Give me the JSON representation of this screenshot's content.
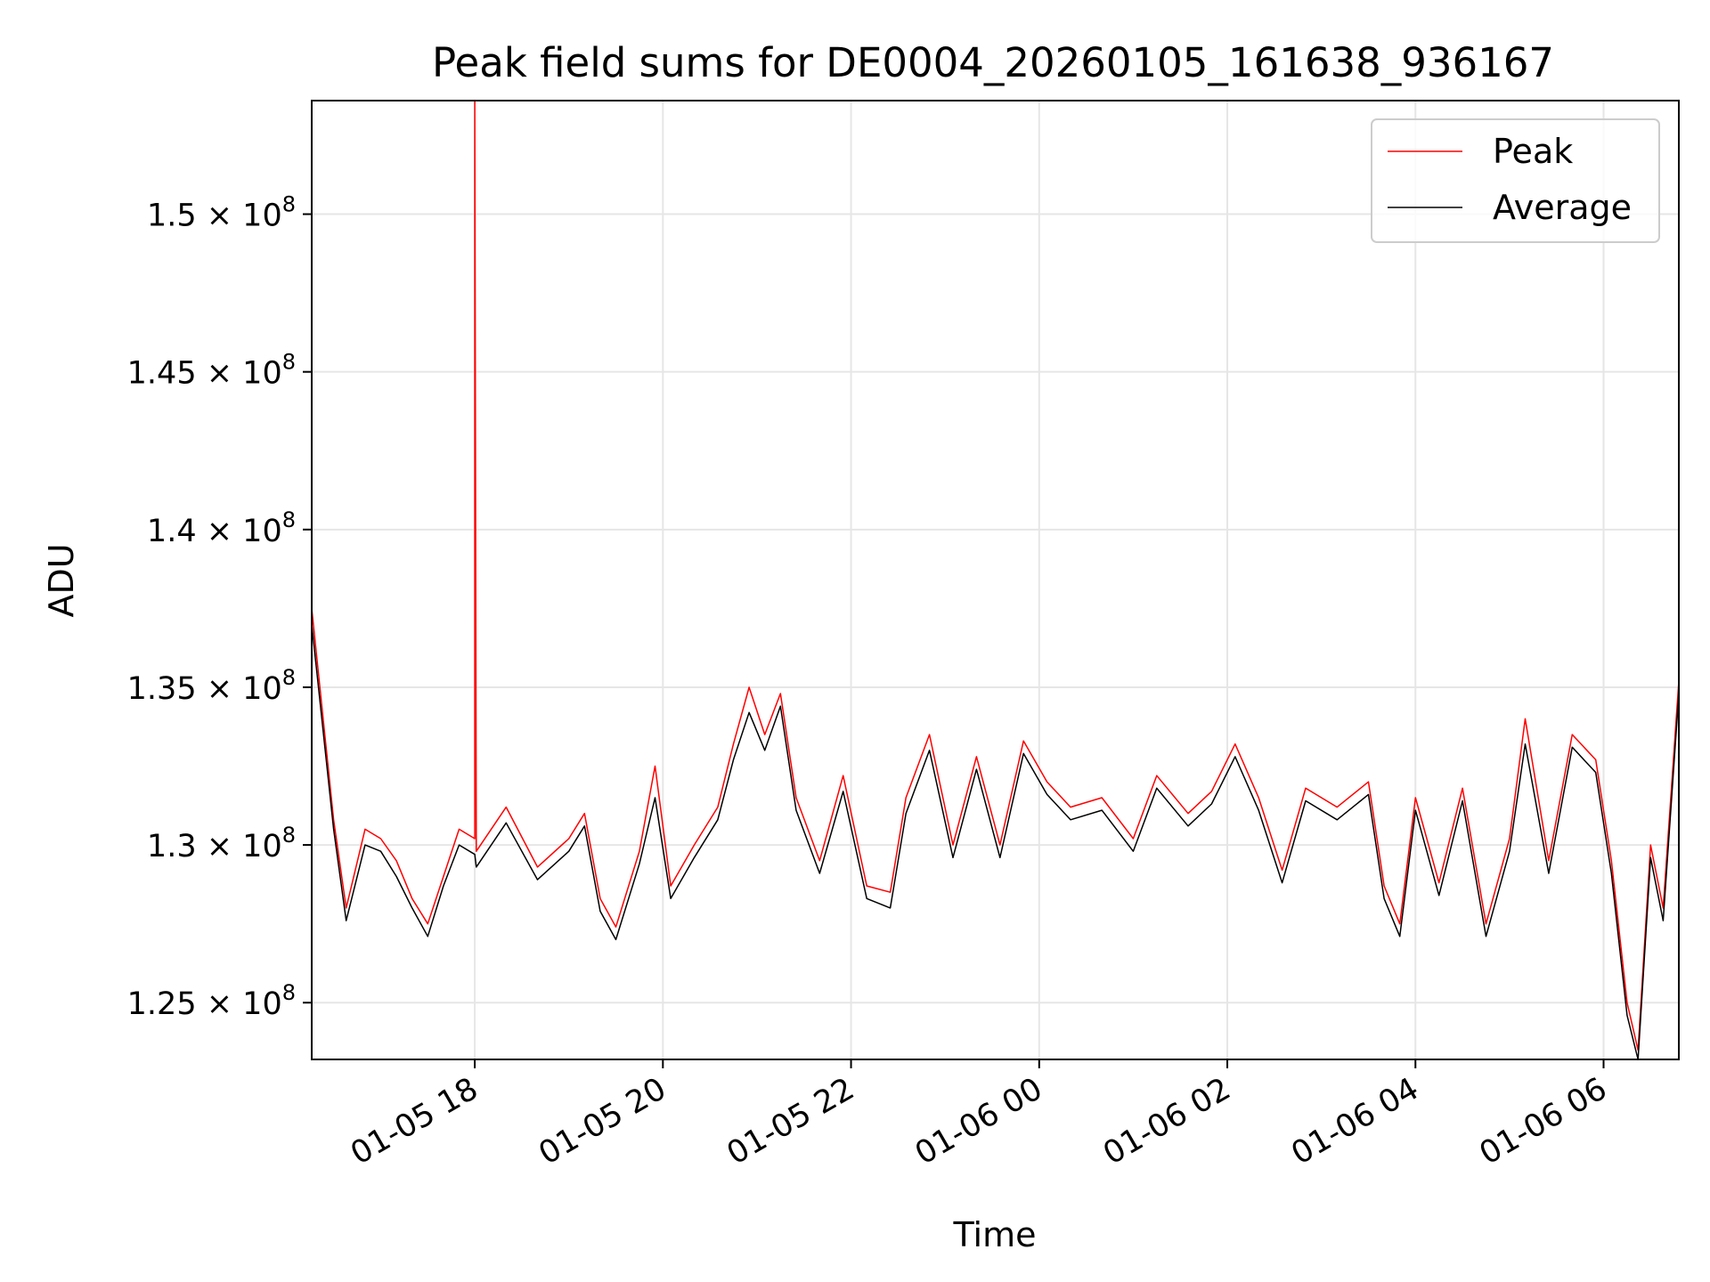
{
  "chart_data": {
    "type": "line",
    "title": "Peak field sums for DE0004_20260105_161638_936167",
    "xlabel": "Time",
    "ylabel": "ADU",
    "x_range": [
      "2026-01-05 16:16",
      "2026-01-06 06:48"
    ],
    "ylim": [
      123200000,
      153600000
    ],
    "grid": true,
    "legend": {
      "placement": "top-right",
      "entries": [
        "Peak",
        "Average"
      ]
    },
    "x_ticks": [
      {
        "value": "2026-01-05 18:00",
        "label": "01-05 18"
      },
      {
        "value": "2026-01-05 20:00",
        "label": "01-05 20"
      },
      {
        "value": "2026-01-05 22:00",
        "label": "01-05 22"
      },
      {
        "value": "2026-01-06 00:00",
        "label": "01-06 00"
      },
      {
        "value": "2026-01-06 02:00",
        "label": "01-06 02"
      },
      {
        "value": "2026-01-06 04:00",
        "label": "01-06 04"
      },
      {
        "value": "2026-01-06 06:00",
        "label": "01-06 06"
      }
    ],
    "y_ticks": [
      {
        "value": 125000000,
        "mantissa": "1.25",
        "exponent": "8"
      },
      {
        "value": 130000000,
        "mantissa": "1.3",
        "exponent": "8"
      },
      {
        "value": 135000000,
        "mantissa": "1.35",
        "exponent": "8"
      },
      {
        "value": 140000000,
        "mantissa": "1.4",
        "exponent": "8"
      },
      {
        "value": 145000000,
        "mantissa": "1.45",
        "exponent": "8"
      },
      {
        "value": 150000000,
        "mantissa": "1.5",
        "exponent": "8"
      }
    ],
    "series": [
      {
        "name": "Peak",
        "color": "#ff0000",
        "points": [
          [
            "2026-01-05 16:16",
            137500000
          ],
          [
            "2026-01-05 16:30",
            130800000
          ],
          [
            "2026-01-05 16:38",
            128000000
          ],
          [
            "2026-01-05 16:50",
            130500000
          ],
          [
            "2026-01-05 17:00",
            130200000
          ],
          [
            "2026-01-05 17:10",
            129500000
          ],
          [
            "2026-01-05 17:20",
            128300000
          ],
          [
            "2026-01-05 17:30",
            127500000
          ],
          [
            "2026-01-05 17:40",
            129000000
          ],
          [
            "2026-01-05 17:50",
            130500000
          ],
          [
            "2026-01-05 18:00",
            130200000
          ],
          [
            "2026-01-05 18:00",
            153600000
          ],
          [
            "2026-01-05 18:01",
            129800000
          ],
          [
            "2026-01-05 18:20",
            131200000
          ],
          [
            "2026-01-05 18:40",
            129300000
          ],
          [
            "2026-01-05 19:00",
            130200000
          ],
          [
            "2026-01-05 19:10",
            131000000
          ],
          [
            "2026-01-05 19:20",
            128300000
          ],
          [
            "2026-01-05 19:30",
            127400000
          ],
          [
            "2026-01-05 19:45",
            129800000
          ],
          [
            "2026-01-05 19:55",
            132500000
          ],
          [
            "2026-01-05 20:05",
            128700000
          ],
          [
            "2026-01-05 20:20",
            130000000
          ],
          [
            "2026-01-05 20:35",
            131200000
          ],
          [
            "2026-01-05 20:45",
            133200000
          ],
          [
            "2026-01-05 20:55",
            135000000
          ],
          [
            "2026-01-05 21:05",
            133500000
          ],
          [
            "2026-01-05 21:15",
            134800000
          ],
          [
            "2026-01-05 21:25",
            131500000
          ],
          [
            "2026-01-05 21:40",
            129500000
          ],
          [
            "2026-01-05 21:55",
            132200000
          ],
          [
            "2026-01-05 22:10",
            128700000
          ],
          [
            "2026-01-05 22:25",
            128500000
          ],
          [
            "2026-01-05 22:35",
            131500000
          ],
          [
            "2026-01-05 22:50",
            133500000
          ],
          [
            "2026-01-05 23:05",
            130000000
          ],
          [
            "2026-01-05 23:20",
            132800000
          ],
          [
            "2026-01-05 23:35",
            130000000
          ],
          [
            "2026-01-05 23:50",
            133300000
          ],
          [
            "2026-01-06 00:05",
            132000000
          ],
          [
            "2026-01-06 00:20",
            131200000
          ],
          [
            "2026-01-06 00:40",
            131500000
          ],
          [
            "2026-01-06 01:00",
            130200000
          ],
          [
            "2026-01-06 01:15",
            132200000
          ],
          [
            "2026-01-06 01:35",
            131000000
          ],
          [
            "2026-01-06 01:50",
            131700000
          ],
          [
            "2026-01-06 02:05",
            133200000
          ],
          [
            "2026-01-06 02:20",
            131500000
          ],
          [
            "2026-01-06 02:35",
            129200000
          ],
          [
            "2026-01-06 02:50",
            131800000
          ],
          [
            "2026-01-06 03:10",
            131200000
          ],
          [
            "2026-01-06 03:30",
            132000000
          ],
          [
            "2026-01-06 03:40",
            128700000
          ],
          [
            "2026-01-06 03:50",
            127500000
          ],
          [
            "2026-01-06 04:00",
            131500000
          ],
          [
            "2026-01-06 04:15",
            128800000
          ],
          [
            "2026-01-06 04:30",
            131800000
          ],
          [
            "2026-01-06 04:45",
            127500000
          ],
          [
            "2026-01-06 05:00",
            130200000
          ],
          [
            "2026-01-06 05:10",
            134000000
          ],
          [
            "2026-01-06 05:25",
            129500000
          ],
          [
            "2026-01-06 05:40",
            133500000
          ],
          [
            "2026-01-06 05:55",
            132700000
          ],
          [
            "2026-01-06 06:05",
            129500000
          ],
          [
            "2026-01-06 06:15",
            125000000
          ],
          [
            "2026-01-06 06:22",
            123500000
          ],
          [
            "2026-01-06 06:30",
            130000000
          ],
          [
            "2026-01-06 06:38",
            128000000
          ],
          [
            "2026-01-06 06:48",
            135200000
          ]
        ]
      },
      {
        "name": "Average",
        "color": "#000000",
        "points": [
          [
            "2026-01-05 16:16",
            137000000
          ],
          [
            "2026-01-05 16:30",
            130500000
          ],
          [
            "2026-01-05 16:38",
            127600000
          ],
          [
            "2026-01-05 16:50",
            130000000
          ],
          [
            "2026-01-05 17:00",
            129800000
          ],
          [
            "2026-01-05 17:10",
            129000000
          ],
          [
            "2026-01-05 17:20",
            128000000
          ],
          [
            "2026-01-05 17:30",
            127100000
          ],
          [
            "2026-01-05 17:40",
            128700000
          ],
          [
            "2026-01-05 17:50",
            130000000
          ],
          [
            "2026-01-05 18:00",
            129700000
          ],
          [
            "2026-01-05 18:01",
            129300000
          ],
          [
            "2026-01-05 18:20",
            130700000
          ],
          [
            "2026-01-05 18:40",
            128900000
          ],
          [
            "2026-01-05 19:00",
            129800000
          ],
          [
            "2026-01-05 19:10",
            130600000
          ],
          [
            "2026-01-05 19:20",
            127900000
          ],
          [
            "2026-01-05 19:30",
            127000000
          ],
          [
            "2026-01-05 19:45",
            129400000
          ],
          [
            "2026-01-05 19:55",
            131500000
          ],
          [
            "2026-01-05 20:05",
            128300000
          ],
          [
            "2026-01-05 20:20",
            129600000
          ],
          [
            "2026-01-05 20:35",
            130800000
          ],
          [
            "2026-01-05 20:45",
            132700000
          ],
          [
            "2026-01-05 20:55",
            134200000
          ],
          [
            "2026-01-05 21:05",
            133000000
          ],
          [
            "2026-01-05 21:15",
            134400000
          ],
          [
            "2026-01-05 21:25",
            131100000
          ],
          [
            "2026-01-05 21:40",
            129100000
          ],
          [
            "2026-01-05 21:55",
            131700000
          ],
          [
            "2026-01-05 22:10",
            128300000
          ],
          [
            "2026-01-05 22:25",
            128000000
          ],
          [
            "2026-01-05 22:35",
            131000000
          ],
          [
            "2026-01-05 22:50",
            133000000
          ],
          [
            "2026-01-05 23:05",
            129600000
          ],
          [
            "2026-01-05 23:20",
            132400000
          ],
          [
            "2026-01-05 23:35",
            129600000
          ],
          [
            "2026-01-05 23:50",
            132900000
          ],
          [
            "2026-01-06 00:05",
            131600000
          ],
          [
            "2026-01-06 00:20",
            130800000
          ],
          [
            "2026-01-06 00:40",
            131100000
          ],
          [
            "2026-01-06 01:00",
            129800000
          ],
          [
            "2026-01-06 01:15",
            131800000
          ],
          [
            "2026-01-06 01:35",
            130600000
          ],
          [
            "2026-01-06 01:50",
            131300000
          ],
          [
            "2026-01-06 02:05",
            132800000
          ],
          [
            "2026-01-06 02:20",
            131100000
          ],
          [
            "2026-01-06 02:35",
            128800000
          ],
          [
            "2026-01-06 02:50",
            131400000
          ],
          [
            "2026-01-06 03:10",
            130800000
          ],
          [
            "2026-01-06 03:30",
            131600000
          ],
          [
            "2026-01-06 03:40",
            128300000
          ],
          [
            "2026-01-06 03:50",
            127100000
          ],
          [
            "2026-01-06 04:00",
            131100000
          ],
          [
            "2026-01-06 04:15",
            128400000
          ],
          [
            "2026-01-06 04:30",
            131400000
          ],
          [
            "2026-01-06 04:45",
            127100000
          ],
          [
            "2026-01-06 05:00",
            129800000
          ],
          [
            "2026-01-06 05:10",
            133200000
          ],
          [
            "2026-01-06 05:25",
            129100000
          ],
          [
            "2026-01-06 05:40",
            133100000
          ],
          [
            "2026-01-06 05:55",
            132300000
          ],
          [
            "2026-01-06 06:05",
            129100000
          ],
          [
            "2026-01-06 06:15",
            124600000
          ],
          [
            "2026-01-06 06:22",
            123200000
          ],
          [
            "2026-01-06 06:30",
            129600000
          ],
          [
            "2026-01-06 06:38",
            127600000
          ],
          [
            "2026-01-06 06:48",
            134800000
          ]
        ]
      }
    ]
  }
}
